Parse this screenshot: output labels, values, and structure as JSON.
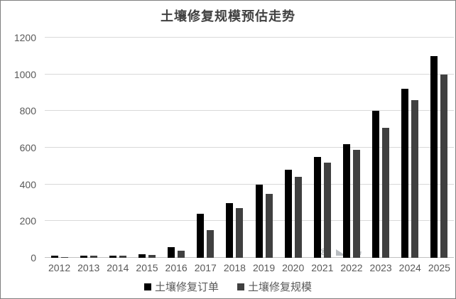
{
  "window": {
    "background": "#ffffff",
    "border_color": "#7f7f7f"
  },
  "chart_data": {
    "type": "bar",
    "title": "土壤修复规模预估走势",
    "categories": [
      "2012",
      "2013",
      "2014",
      "2015",
      "2016",
      "2017",
      "2018",
      "2019",
      "2020",
      "2021",
      "2022",
      "2023",
      "2024",
      "2025"
    ],
    "series": [
      {
        "key": "orders",
        "name": "土壤修复订单",
        "color": "#000000",
        "values": [
          10,
          10,
          10,
          20,
          60,
          240,
          300,
          400,
          480,
          550,
          620,
          800,
          920,
          1100
        ]
      },
      {
        "key": "scale",
        "name": "土壤修复规模",
        "color": "#404040",
        "values": [
          5,
          10,
          10,
          15,
          40,
          150,
          270,
          350,
          440,
          520,
          590,
          710,
          860,
          1000
        ]
      }
    ],
    "xlabel": "",
    "ylabel": "",
    "ylim": [
      0,
      1200
    ],
    "yticks": [
      0,
      200,
      400,
      600,
      800,
      1000,
      1200
    ],
    "grid": true,
    "gridline_color": "#d9d9d9",
    "axis_label_color": "#595959",
    "legend_position": "bottom"
  },
  "watermark": {
    "registered_mark": "®"
  }
}
